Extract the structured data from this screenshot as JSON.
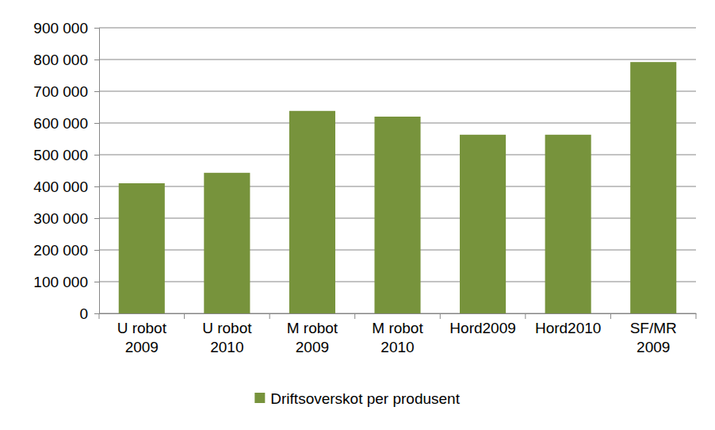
{
  "chart_data": {
    "type": "bar",
    "categories": [
      "U robot 2009",
      "U robot 2010",
      "M robot 2009",
      "M robot 2010",
      "Hord2009",
      "Hord2010",
      "SF/MR 2009"
    ],
    "series": [
      {
        "name": "Driftsoverskot per produsent",
        "color": "#77933c",
        "values": [
          410000,
          443000,
          638000,
          620000,
          563000,
          563000,
          792000
        ]
      }
    ],
    "ylim": [
      0,
      900000
    ],
    "yticks": [
      {
        "value": 0,
        "label": "0"
      },
      {
        "value": 100000,
        "label": "100 000"
      },
      {
        "value": 200000,
        "label": "200 000"
      },
      {
        "value": 300000,
        "label": "300 000"
      },
      {
        "value": 400000,
        "label": "400 000"
      },
      {
        "value": 500000,
        "label": "500 000"
      },
      {
        "value": 600000,
        "label": "600 000"
      },
      {
        "value": 700000,
        "label": "700 000"
      },
      {
        "value": 800000,
        "label": "800 000"
      },
      {
        "value": 900000,
        "label": "900 000"
      }
    ],
    "grid": true,
    "legend": "bottom"
  }
}
